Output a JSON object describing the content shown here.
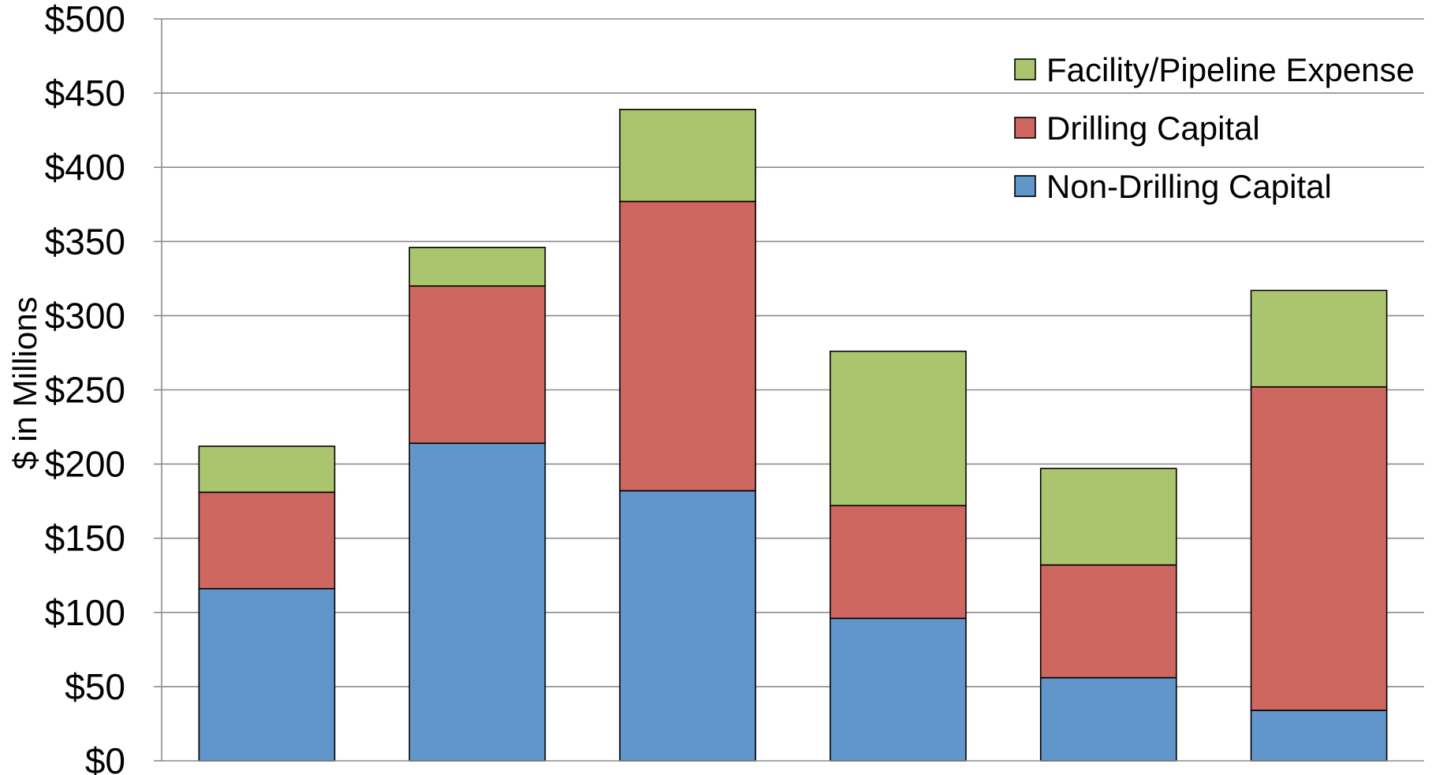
{
  "chart_data": {
    "type": "bar",
    "stacked": true,
    "title": "",
    "xlabel": "",
    "ylabel": "$ in Millions",
    "ylim": [
      0,
      500
    ],
    "y_ticks": [
      0,
      50,
      100,
      150,
      200,
      250,
      300,
      350,
      400,
      450,
      500
    ],
    "y_tick_labels": [
      "$0",
      "$50",
      "$100",
      "$150",
      "$200",
      "$250",
      "$300",
      "$350",
      "$400",
      "$450",
      "$500"
    ],
    "categories": [
      "",
      "",
      "",
      "",
      "",
      ""
    ],
    "grid": true,
    "legend_position": "top-right",
    "series": [
      {
        "name": "Non-Drilling Capital",
        "color": "#6096CA",
        "values": [
          116,
          214,
          182,
          96,
          56,
          34
        ]
      },
      {
        "name": "Drilling Capital",
        "color": "#CE6760",
        "values": [
          65,
          106,
          195,
          76,
          76,
          218
        ]
      },
      {
        "name": "Facility/Pipeline Expense",
        "color": "#AAC56E",
        "values": [
          31,
          26,
          62,
          104,
          65,
          65
        ]
      }
    ]
  }
}
